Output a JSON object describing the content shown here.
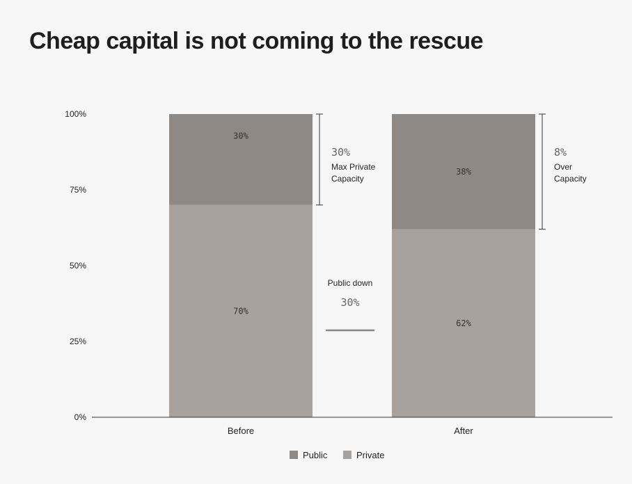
{
  "title": "Cheap capital is not coming to the rescue",
  "chart_data": {
    "type": "bar",
    "stacked": true,
    "categories": [
      "Before",
      "After"
    ],
    "series": [
      {
        "name": "Private",
        "values": [
          70,
          62
        ],
        "labels": [
          "70%",
          "62%"
        ],
        "color": "#a7a29d"
      },
      {
        "name": "Public",
        "values": [
          30,
          38
        ],
        "labels": [
          "30%",
          "38%"
        ],
        "color": "#8e8984"
      }
    ],
    "y_ticks": [
      "0%",
      "25%",
      "50%",
      "75%",
      "100%"
    ],
    "ylim": [
      0,
      100
    ],
    "legend_position": "bottom",
    "annotations": [
      {
        "value": "30%",
        "text": [
          "Max Private",
          "Capacity"
        ],
        "bracket": [
          70,
          100
        ]
      },
      {
        "value": "8%",
        "text": [
          "Over",
          "Capacity"
        ],
        "bracket": [
          62,
          100
        ]
      },
      {
        "text": [
          "Public down"
        ],
        "value": "30%"
      }
    ]
  }
}
